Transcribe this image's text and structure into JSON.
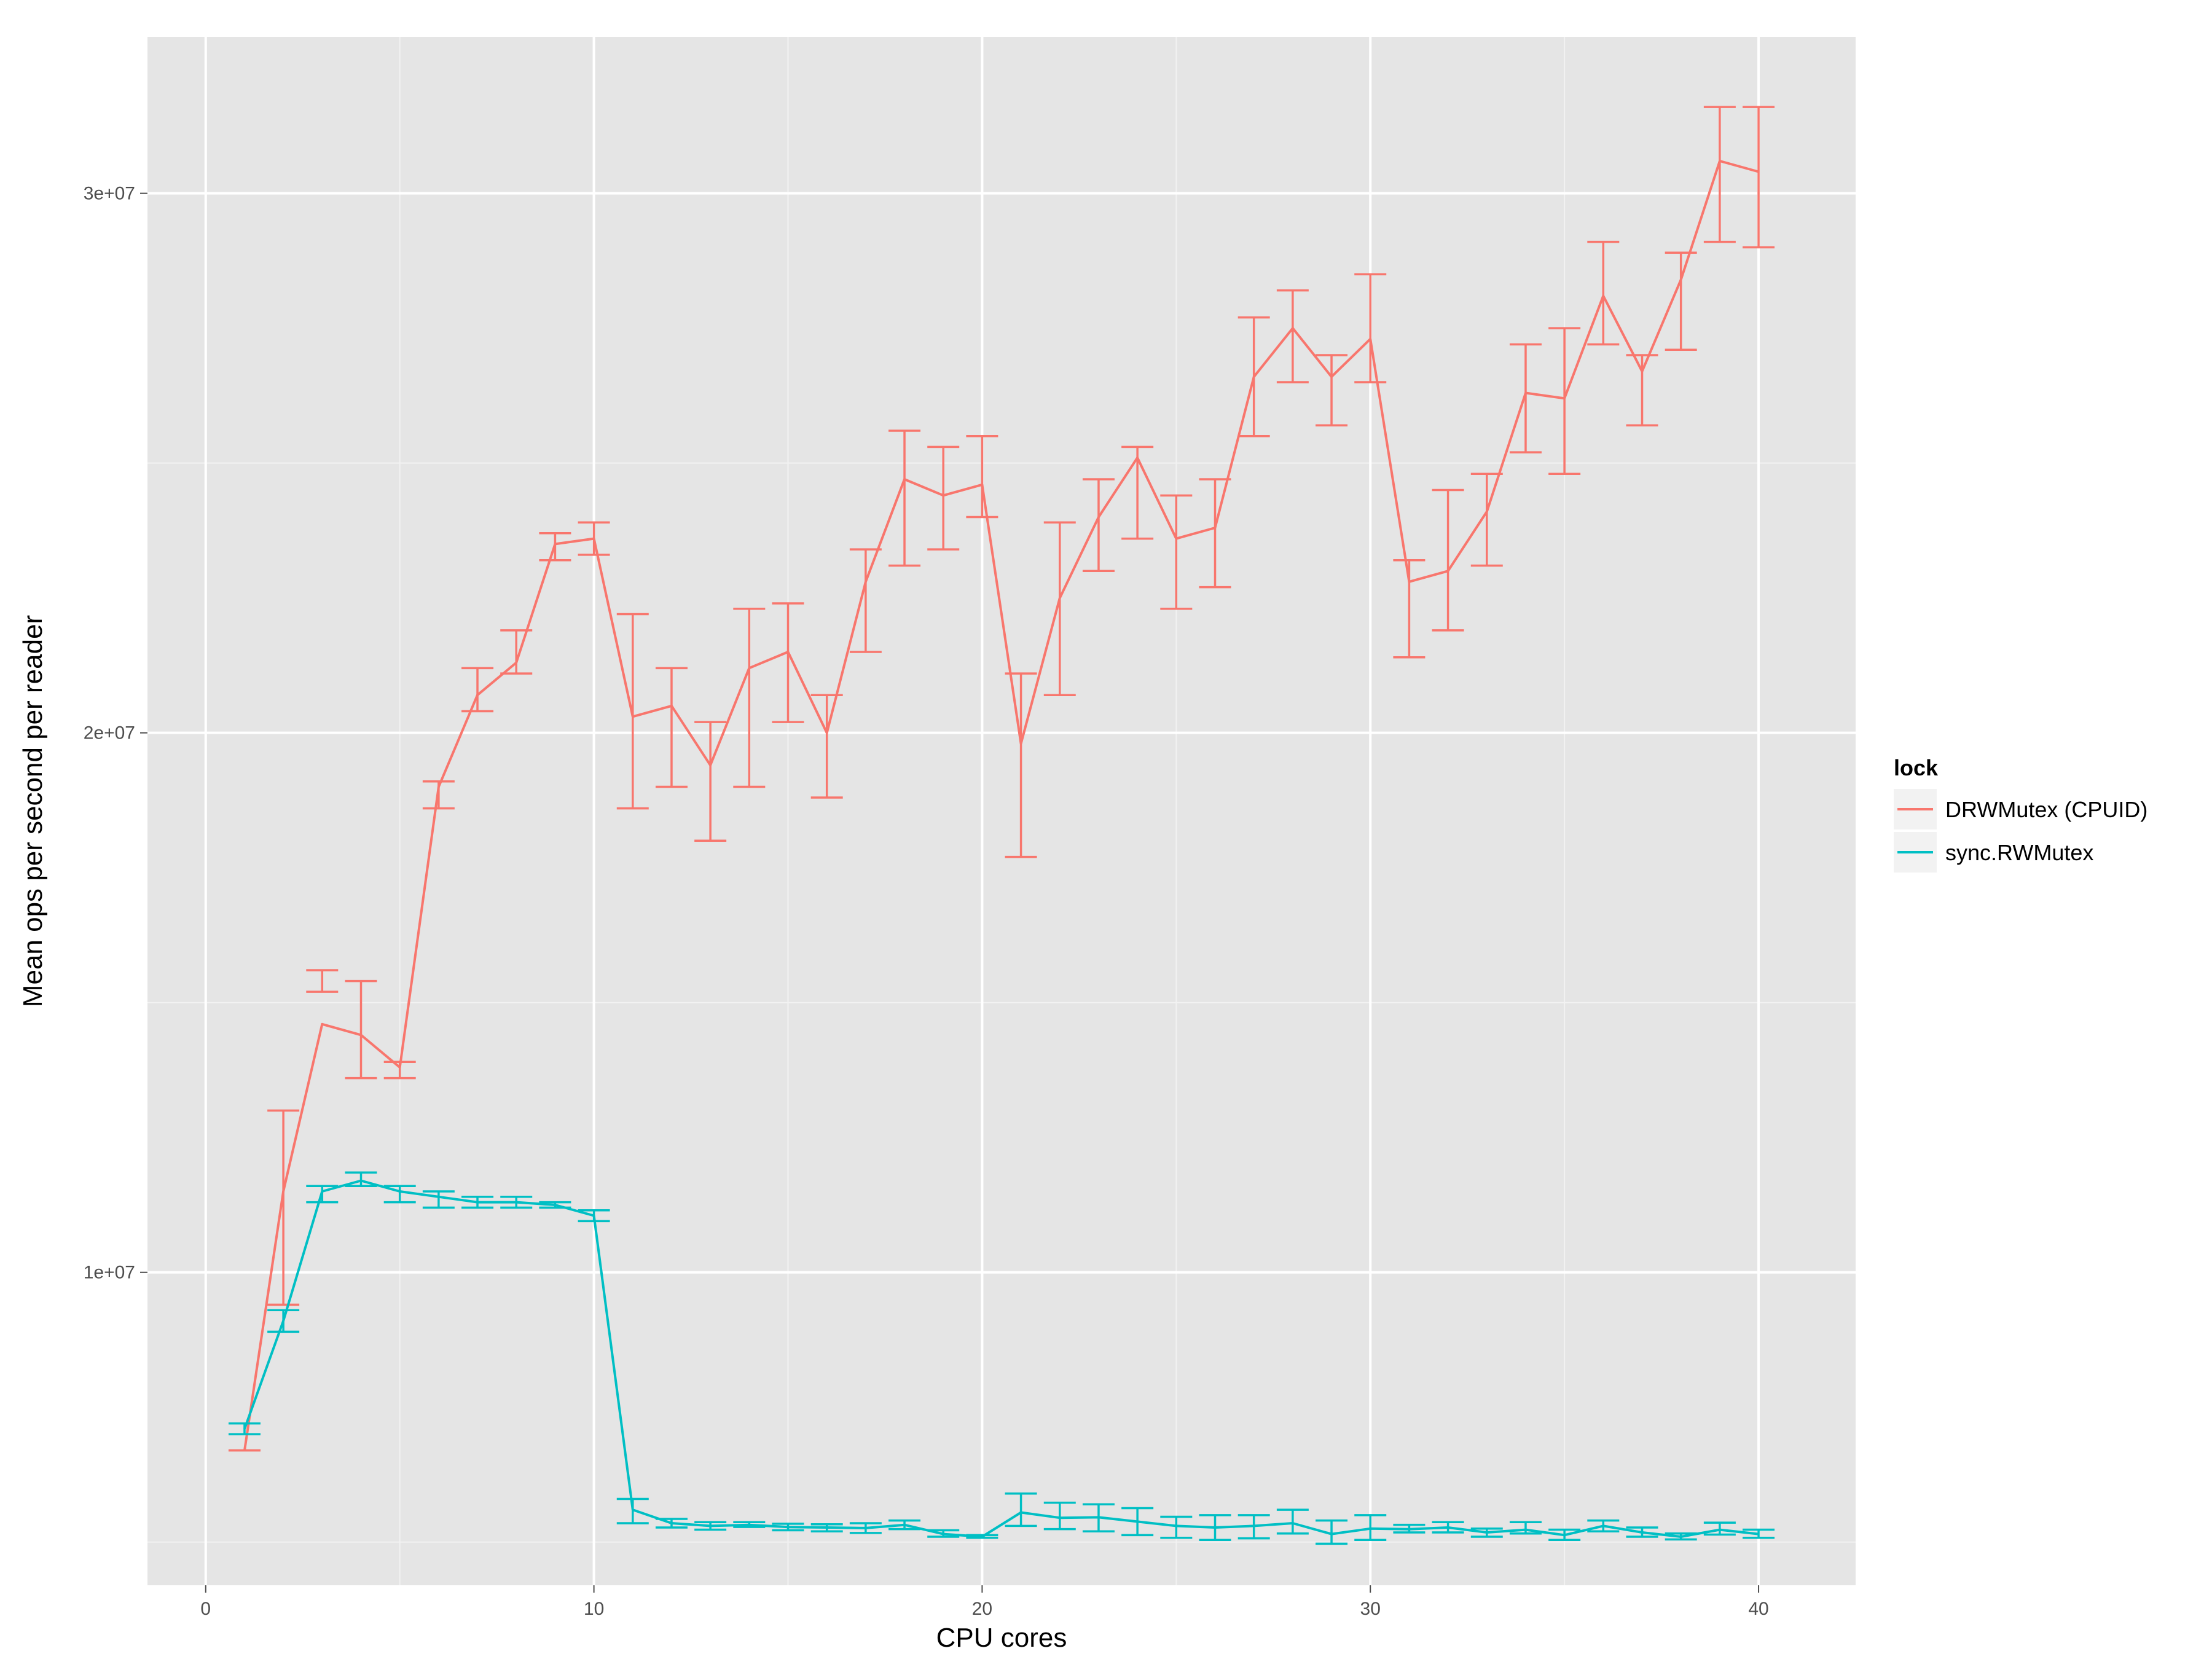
{
  "chart_data": {
    "type": "line",
    "xlabel": "CPU cores",
    "ylabel": "Mean ops per second per reader",
    "xlim": [
      -1.5,
      42.5
    ],
    "ylim": [
      4200000,
      32900000
    ],
    "x_ticks": [
      0,
      10,
      20,
      30,
      40
    ],
    "x_tick_labels": [
      "0",
      "10",
      "20",
      "30",
      "40"
    ],
    "y_ticks": [
      10000000,
      20000000,
      30000000
    ],
    "y_tick_labels": [
      "1e+07",
      "2e+07",
      "3e+07"
    ],
    "grid": true,
    "legend": {
      "title": "lock",
      "position": "right"
    },
    "series": [
      {
        "name": "DRWMutex (CPUID)",
        "color": "#F8766D",
        "x": [
          1,
          2,
          3,
          4,
          5,
          6,
          7,
          8,
          9,
          10,
          11,
          12,
          13,
          14,
          15,
          16,
          17,
          18,
          19,
          20,
          21,
          22,
          23,
          24,
          25,
          26,
          27,
          28,
          29,
          30,
          31,
          32,
          33,
          34,
          35,
          36,
          37,
          38,
          39,
          40
        ],
        "y": [
          6700000,
          11500000,
          14600000,
          14400000,
          13800000,
          19000000,
          20700000,
          21300000,
          23500000,
          23600000,
          20300000,
          20500000,
          19400000,
          21200000,
          21500000,
          20000000,
          22800000,
          24700000,
          24400000,
          24600000,
          19800000,
          22500000,
          24000000,
          25100000,
          23600000,
          23800000,
          26600000,
          27500000,
          26600000,
          27300000,
          22800000,
          23000000,
          24100000,
          26300000,
          26200000,
          28100000,
          26700000,
          28400000,
          30600000,
          30400000
        ],
        "ymin": [
          6700000,
          9400000,
          15200000,
          13600000,
          13600000,
          18600000,
          20400000,
          21100000,
          23200000,
          23300000,
          18600000,
          19000000,
          18000000,
          19000000,
          20200000,
          18800000,
          21500000,
          23100000,
          23400000,
          24000000,
          17700000,
          20700000,
          23000000,
          23600000,
          22300000,
          22700000,
          25500000,
          26500000,
          25700000,
          26500000,
          21400000,
          21900000,
          23100000,
          25200000,
          24800000,
          27200000,
          25700000,
          27100000,
          29100000,
          29000000
        ],
        "ymax": [
          6700000,
          13000000,
          15600000,
          15400000,
          13900000,
          19100000,
          21200000,
          21900000,
          23700000,
          23900000,
          22200000,
          21200000,
          20200000,
          22300000,
          22400000,
          20700000,
          23400000,
          25600000,
          25300000,
          25500000,
          21100000,
          23900000,
          24700000,
          25300000,
          24400000,
          24700000,
          27700000,
          28200000,
          27000000,
          28500000,
          23200000,
          24500000,
          24800000,
          27200000,
          27500000,
          29100000,
          27000000,
          28900000,
          31600000,
          31600000
        ]
      },
      {
        "name": "sync.RWMutex",
        "color": "#00BFC4",
        "x": [
          1,
          2,
          3,
          4,
          5,
          6,
          7,
          8,
          9,
          10,
          11,
          12,
          13,
          14,
          15,
          16,
          17,
          18,
          19,
          20,
          21,
          22,
          23,
          24,
          25,
          26,
          27,
          28,
          29,
          30,
          31,
          32,
          33,
          34,
          35,
          36,
          37,
          38,
          39,
          40
        ],
        "y": [
          7100000,
          9100000,
          11500000,
          11700000,
          11500000,
          11400000,
          11300000,
          11300000,
          11250000,
          11050000,
          5600000,
          5350000,
          5300000,
          5320000,
          5280000,
          5270000,
          5260000,
          5320000,
          5150000,
          5100000,
          5550000,
          5450000,
          5460000,
          5380000,
          5300000,
          5270000,
          5300000,
          5350000,
          5150000,
          5250000,
          5240000,
          5270000,
          5180000,
          5230000,
          5130000,
          5300000,
          5180000,
          5100000,
          5230000,
          5150000
        ],
        "ymin": [
          7000000,
          8900000,
          11300000,
          11600000,
          11300000,
          11200000,
          11200000,
          11200000,
          11200000,
          10950000,
          5350000,
          5270000,
          5230000,
          5280000,
          5220000,
          5200000,
          5170000,
          5240000,
          5100000,
          5080000,
          5300000,
          5240000,
          5200000,
          5130000,
          5080000,
          5040000,
          5070000,
          5160000,
          4970000,
          5040000,
          5180000,
          5180000,
          5100000,
          5160000,
          5040000,
          5200000,
          5100000,
          5050000,
          5140000,
          5080000
        ],
        "ymax": [
          7200000,
          9300000,
          11600000,
          11850000,
          11600000,
          11500000,
          11400000,
          11400000,
          11300000,
          11150000,
          5800000,
          5430000,
          5370000,
          5370000,
          5340000,
          5330000,
          5350000,
          5400000,
          5220000,
          5130000,
          5900000,
          5730000,
          5700000,
          5630000,
          5470000,
          5500000,
          5500000,
          5600000,
          5400000,
          5500000,
          5320000,
          5370000,
          5250000,
          5370000,
          5230000,
          5400000,
          5270000,
          5160000,
          5360000,
          5230000
        ]
      }
    ]
  }
}
